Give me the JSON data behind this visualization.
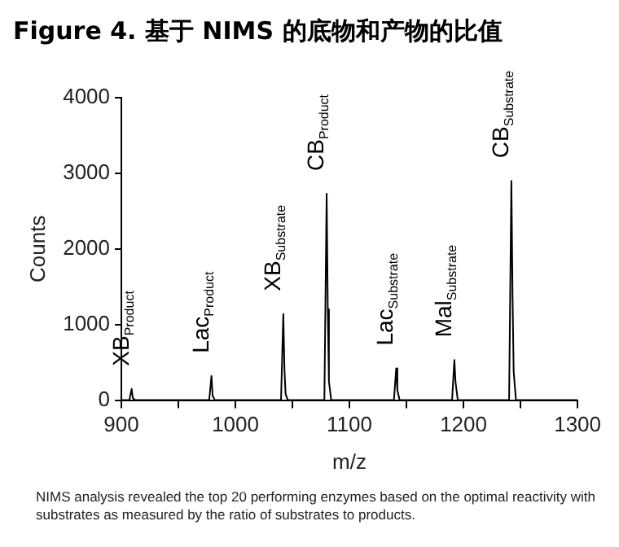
{
  "chart_data": {
    "type": "line",
    "title": "Figure 4. 基于 NIMS 的底物和产物的比值",
    "xlabel": "m/z",
    "ylabel": "Counts",
    "x": [
      900,
      907,
      909,
      910,
      912,
      977,
      979,
      980,
      982,
      1040,
      1042,
      1043,
      1044,
      1046,
      1078,
      1080,
      1081,
      1082,
      1084,
      1139,
      1141,
      1142,
      1144,
      1190,
      1192,
      1193,
      1195,
      1240,
      1242,
      1243,
      1244,
      1246,
      1300
    ],
    "series": [
      {
        "color": "#000000",
        "values": [
          0,
          0,
          150,
          30,
          0,
          0,
          320,
          60,
          0,
          0,
          1140,
          400,
          80,
          0,
          0,
          2730,
          1200,
          250,
          0,
          0,
          420,
          130,
          0,
          0,
          530,
          240,
          0,
          0,
          2900,
          1400,
          380,
          0,
          0
        ]
      }
    ],
    "xlim": [
      900,
      1300
    ],
    "xticks": [
      900,
      {
        "value": 950,
        "label": null
      },
      1000,
      {
        "value": 1050,
        "label": null
      },
      1100,
      {
        "value": 1150,
        "label": null
      },
      1200,
      {
        "value": 1250,
        "label": null
      },
      1300
    ],
    "ylim": [
      0,
      4000
    ],
    "yticks": [
      0,
      1000,
      2000,
      3000,
      4000
    ],
    "grid": false,
    "legend": false,
    "marker": "none",
    "line_style": "solid",
    "annotations": [
      {
        "text": "XB$_{Product}$",
        "x": 909,
        "y": 150
      },
      {
        "text": "Lac$_{Product}$",
        "x": 979,
        "y": 320
      },
      {
        "text": "XB$_{Substrate}$",
        "x": 1042,
        "y": 1140
      },
      {
        "text": "CB$_{Product}$",
        "x": 1080,
        "y": 2730
      },
      {
        "text": "Lac$_{Substrate}$",
        "x": 1141,
        "y": 420
      },
      {
        "text": "Mal$_{Substrate}$",
        "x": 1192,
        "y": 530
      },
      {
        "text": "CB$_{Substrate}$",
        "x": 1242,
        "y": 2900
      },
      "NIMS analysis revealed the top 20 performing enzymes based on the optimal reactivity with substrates as measured by the ratio of substrates to products."
    ]
  }
}
